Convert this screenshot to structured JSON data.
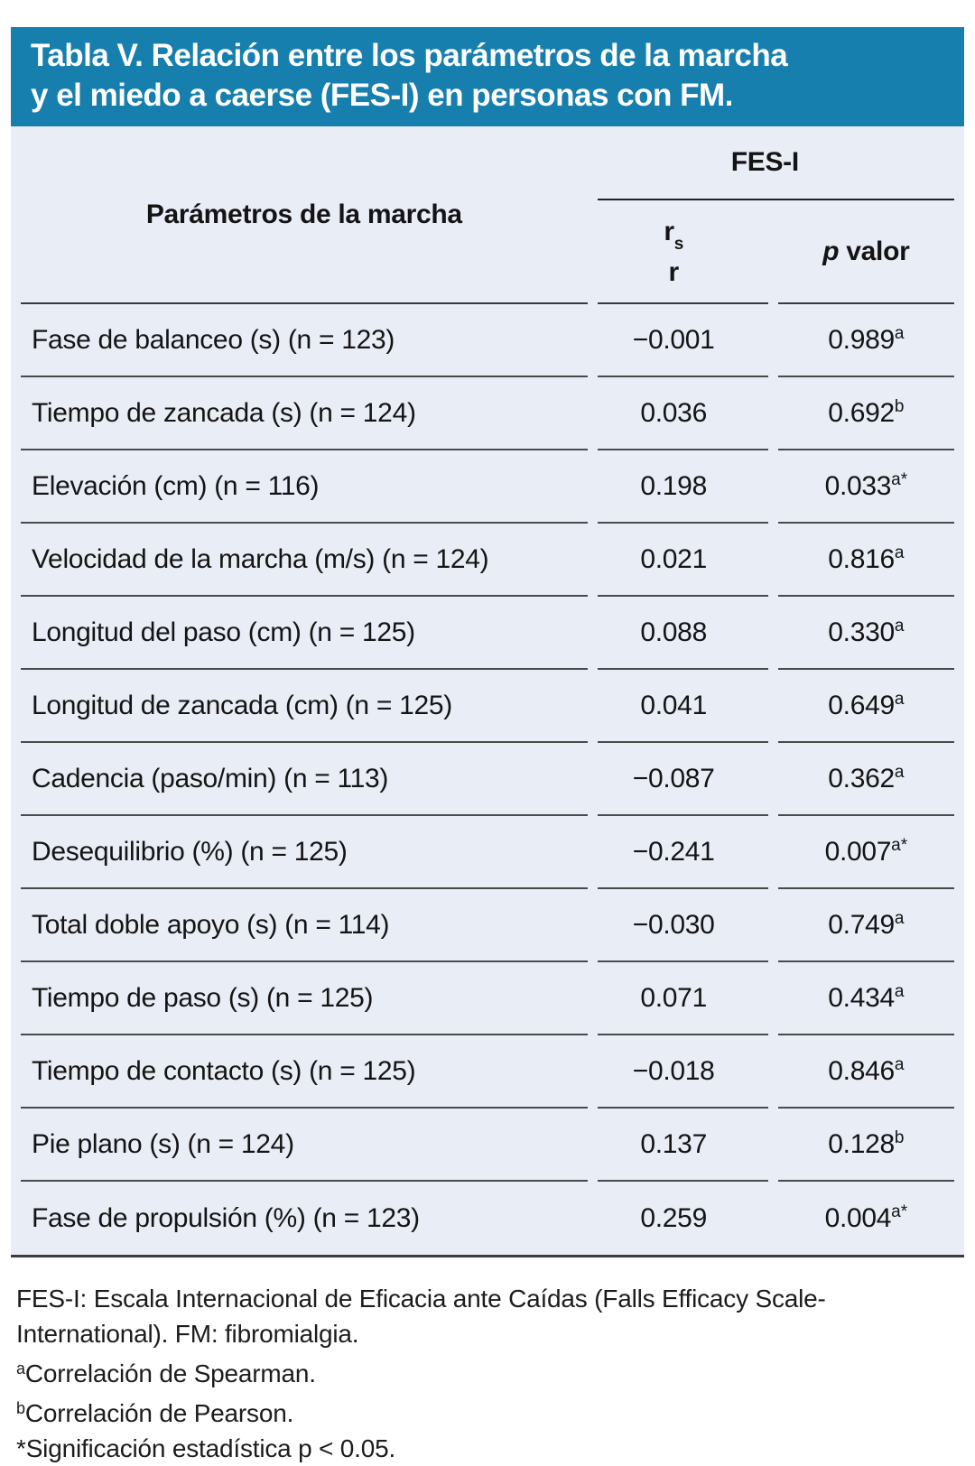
{
  "title": {
    "line1": "Tabla V. Relación entre los parámetros de la marcha",
    "line2": "y el miedo a caerse (FES-I) en personas con FM.",
    "banner_color": "#177fae"
  },
  "table": {
    "col1_header": "Parámetros de la marcha",
    "group_header": "FES-I",
    "col2_header": {
      "line1_base": "r",
      "line1_sub": "s",
      "line2": "r"
    },
    "col3_header": {
      "italic": "p",
      "rest": " valor"
    },
    "body_background": "#e9edf6",
    "rows": [
      {
        "param": "Fase de balanceo (s) (n = 123)",
        "r": "−0.001",
        "p": "0.989",
        "sup": "a"
      },
      {
        "param": "Tiempo de zancada (s) (n = 124)",
        "r": "0.036",
        "p": "0.692",
        "sup": "b"
      },
      {
        "param": "Elevación (cm) (n = 116)",
        "r": "0.198",
        "p": "0.033",
        "sup": "a*"
      },
      {
        "param": "Velocidad de la marcha (m/s) (n = 124)",
        "r": "0.021",
        "p": "0.816",
        "sup": "a"
      },
      {
        "param": "Longitud del paso (cm) (n = 125)",
        "r": "0.088",
        "p": "0.330",
        "sup": "a"
      },
      {
        "param": "Longitud de zancada (cm) (n = 125)",
        "r": "0.041",
        "p": "0.649",
        "sup": "a"
      },
      {
        "param": "Cadencia (paso/min) (n = 113)",
        "r": "−0.087",
        "p": "0.362",
        "sup": "a"
      },
      {
        "param": "Desequilibrio (%) (n = 125)",
        "r": "−0.241",
        "p": "0.007",
        "sup": "a*"
      },
      {
        "param": "Total doble apoyo (s) (n = 114)",
        "r": "−0.030",
        "p": "0.749",
        "sup": "a"
      },
      {
        "param": "Tiempo de paso (s) (n = 125)",
        "r": "0.071",
        "p": "0.434",
        "sup": "a"
      },
      {
        "param": "Tiempo de contacto (s) (n = 125)",
        "r": "−0.018",
        "p": "0.846",
        "sup": "a"
      },
      {
        "param": "Pie plano (s) (n = 124)",
        "r": "0.137",
        "p": "0.128",
        "sup": "b"
      },
      {
        "param": "Fase de propulsión (%) (n = 123)",
        "r": "0.259",
        "p": "0.004",
        "sup": "a*"
      }
    ]
  },
  "footnotes": [
    {
      "sup": "",
      "text": "FES-I: Escala Internacional de Eficacia ante Caídas (Falls Efficacy Scale-International). FM: fibromialgia."
    },
    {
      "sup": "a",
      "text": "Correlación de Spearman."
    },
    {
      "sup": "b",
      "text": "Correlación de Pearson."
    },
    {
      "sup": "",
      "text": "*Significación estadística p < 0.05."
    }
  ]
}
